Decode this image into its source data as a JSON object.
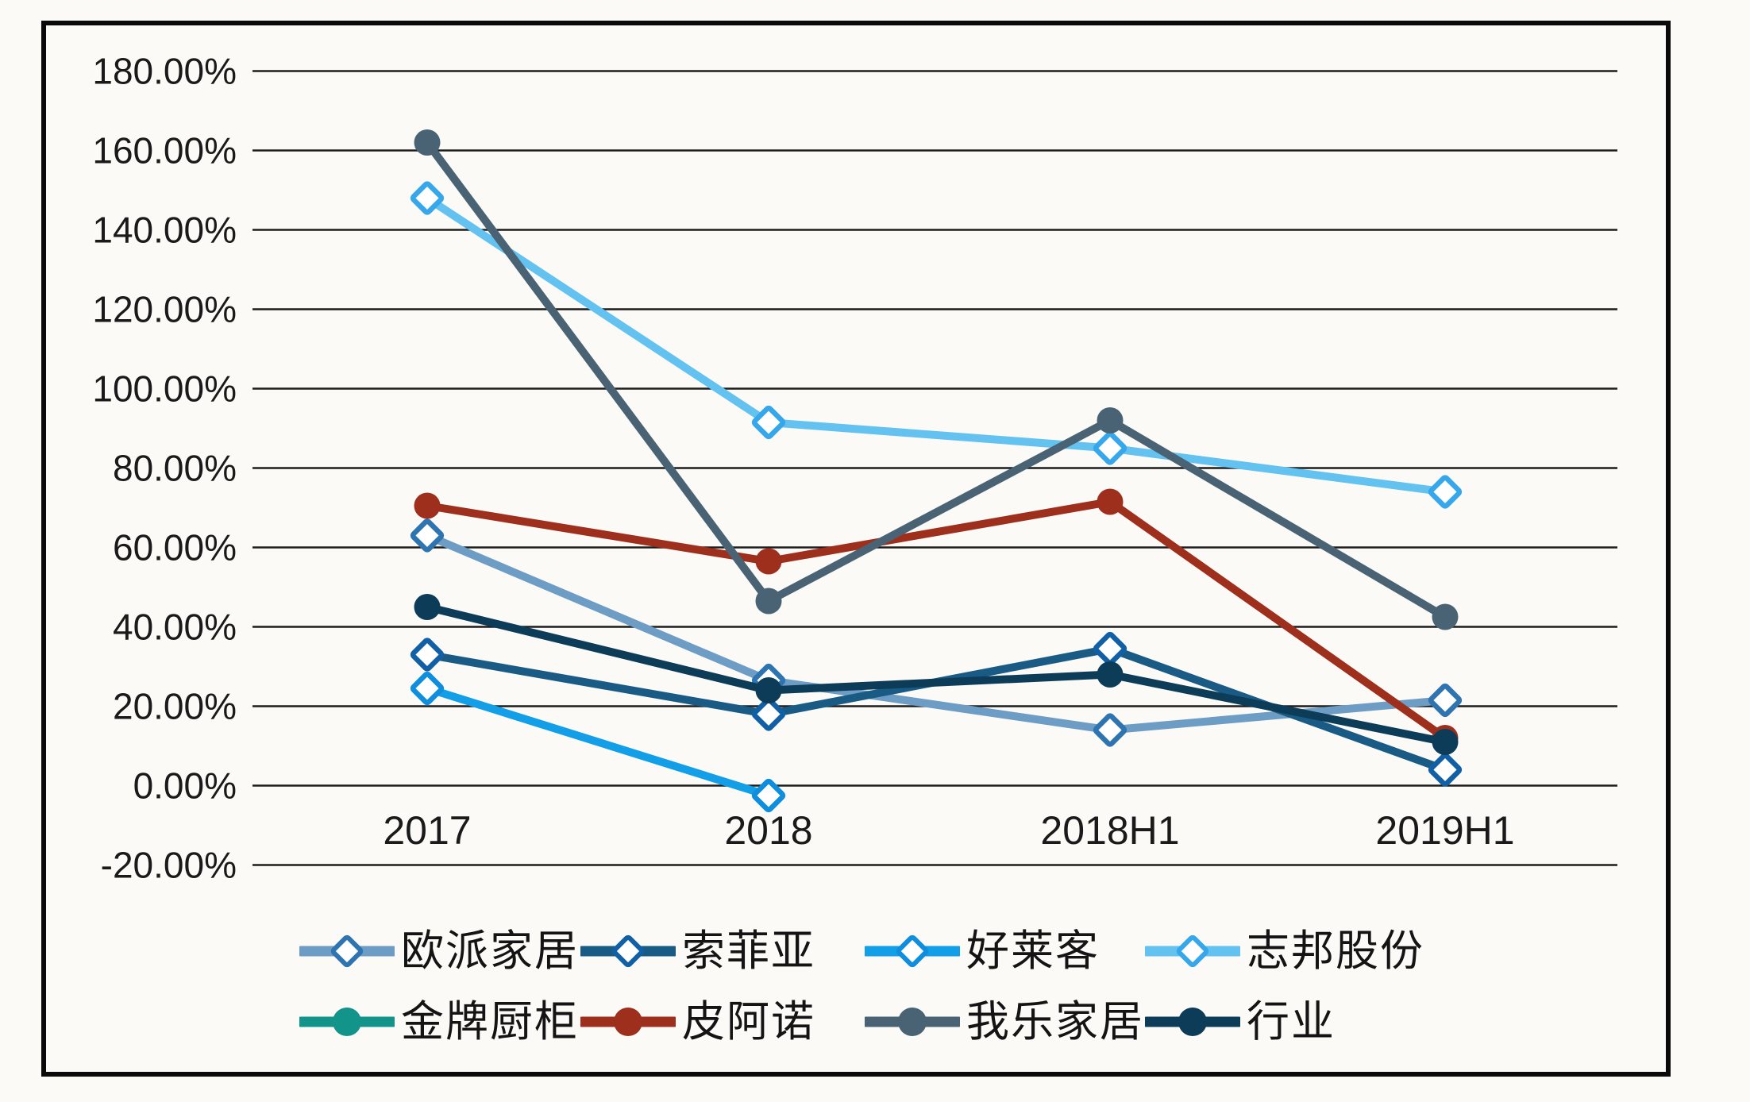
{
  "chart_data": {
    "type": "line",
    "title": "",
    "xlabel": "",
    "ylabel": "",
    "grid": true,
    "background": "#fbfaf7",
    "frame_color": "#0a0a0a",
    "gridline_color": "#1c1c1c",
    "categories": [
      "2017",
      "2018",
      "2018H1",
      "2019H1"
    ],
    "y_axis": {
      "min": -20,
      "max": 180,
      "step": 20,
      "format": "percent",
      "tick_labels": [
        "180.00%",
        "160.00%",
        "140.00%",
        "120.00%",
        "100.00%",
        "80.00%",
        "60.00%",
        "40.00%",
        "20.00%",
        "0.00%",
        "-20.00%"
      ]
    },
    "series": [
      {
        "name": "欧派家居",
        "marker": "diamond",
        "color": "#6D9CC4",
        "marker_color": "#2E74B0",
        "values": [
          63,
          26.5,
          14,
          21.5
        ]
      },
      {
        "name": "索菲亚",
        "marker": "diamond",
        "color": "#1A5B86",
        "marker_color": "#1160A5",
        "values": [
          33,
          18,
          34.5,
          4
        ]
      },
      {
        "name": "好莱客",
        "marker": "diamond",
        "color": "#129FE8",
        "marker_color": "#0E8EDC",
        "values": [
          24.5,
          -2.5,
          null,
          null
        ]
      },
      {
        "name": "志邦股份",
        "marker": "diamond",
        "color": "#63C2F0",
        "marker_color": "#35A7EA",
        "values": [
          148,
          91.5,
          85,
          74
        ]
      },
      {
        "name": "金牌厨柜",
        "marker": "circle",
        "color": "#12948A",
        "marker_color": "#12948A",
        "values": [
          null,
          null,
          null,
          null
        ]
      },
      {
        "name": "皮阿诺",
        "marker": "circle",
        "color": "#9E2F1D",
        "marker_color": "#9E2F1D",
        "values": [
          70.5,
          56.5,
          71.5,
          12
        ]
      },
      {
        "name": "我乐家居",
        "marker": "circle",
        "color": "#4A6374",
        "marker_color": "#4A6374",
        "values": [
          162,
          46.5,
          92,
          42.5
        ]
      },
      {
        "name": "行业",
        "marker": "circle",
        "color": "#0D3C59",
        "marker_color": "#0D3C59",
        "values": [
          45,
          24,
          28,
          11
        ]
      }
    ],
    "legend": {
      "position": "bottom",
      "rows": [
        [
          0,
          1,
          2,
          3
        ],
        [
          4,
          5,
          6,
          7
        ]
      ]
    }
  }
}
